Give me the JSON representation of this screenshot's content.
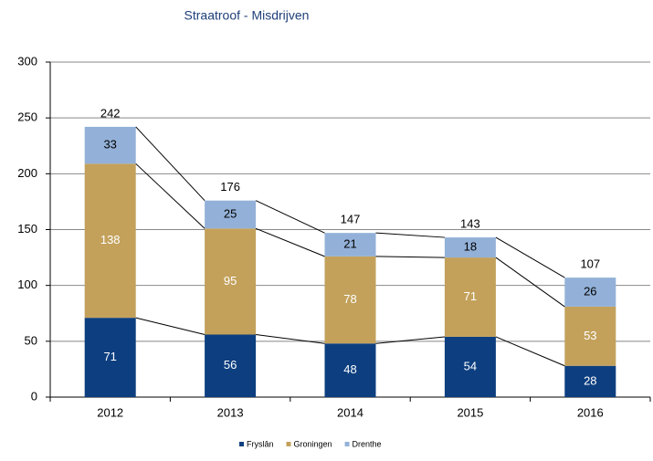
{
  "chart_data": {
    "type": "stacked_bar",
    "title": "Straatroof - Misdrijven",
    "categories": [
      "2012",
      "2013",
      "2014",
      "2015",
      "2016"
    ],
    "series": [
      {
        "name": "Fryslân",
        "color": "#0d3f80",
        "values": [
          71,
          56,
          48,
          54,
          28
        ]
      },
      {
        "name": "Groningen",
        "color": "#c3a15b",
        "values": [
          138,
          95,
          78,
          71,
          53
        ]
      },
      {
        "name": "Drenthe",
        "color": "#93b1d8",
        "values": [
          33,
          25,
          21,
          18,
          26
        ]
      }
    ],
    "totals": [
      242,
      176,
      147,
      143,
      107
    ],
    "ylim": [
      0,
      300
    ],
    "yticks": [
      0,
      50,
      100,
      150,
      200,
      250,
      300
    ],
    "grid": true,
    "legend": "bottom"
  }
}
